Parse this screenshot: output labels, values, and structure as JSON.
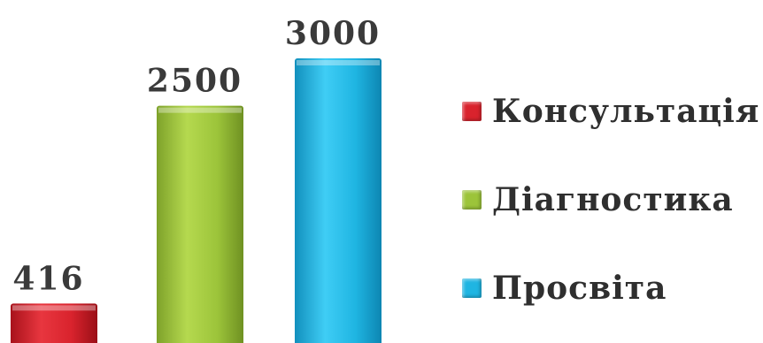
{
  "chart_data": {
    "type": "bar",
    "categories": [
      "Консультація",
      "Діагностика",
      "Просвіта"
    ],
    "values": [
      416,
      2500,
      3000
    ],
    "data_labels": [
      "416",
      "2500",
      "3000"
    ],
    "colors": [
      "#d9232d",
      "#9cc43a",
      "#1fb5e2"
    ],
    "legend": {
      "placement": "right",
      "entries": [
        "Консультація",
        "Діагностика",
        "Просвіта"
      ]
    },
    "title": "",
    "xlabel": "",
    "ylabel": "",
    "ylim": [
      0,
      3000
    ],
    "grid": false
  }
}
